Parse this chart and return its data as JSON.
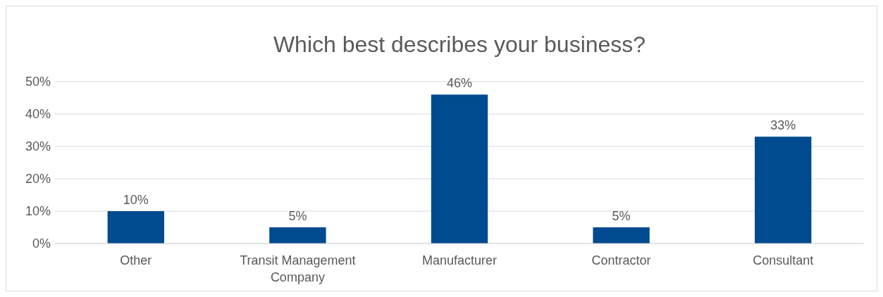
{
  "chart_data": {
    "type": "bar",
    "title": "Which best describes your business?",
    "categories": [
      "Other",
      "Transit Management Company",
      "Manufacturer",
      "Contractor",
      "Consultant"
    ],
    "values": [
      10,
      5,
      46,
      5,
      33
    ],
    "value_labels": [
      "10%",
      "5%",
      "46%",
      "5%",
      "33%"
    ],
    "color": "#004a8f",
    "ylim": [
      0,
      50
    ],
    "yticks": [
      {
        "value": 0,
        "label": "0%"
      },
      {
        "value": 10,
        "label": "10%"
      },
      {
        "value": 20,
        "label": "20%"
      },
      {
        "value": 30,
        "label": "30%"
      },
      {
        "value": 40,
        "label": "40%"
      },
      {
        "value": 50,
        "label": "50%"
      }
    ],
    "grid": "y"
  }
}
